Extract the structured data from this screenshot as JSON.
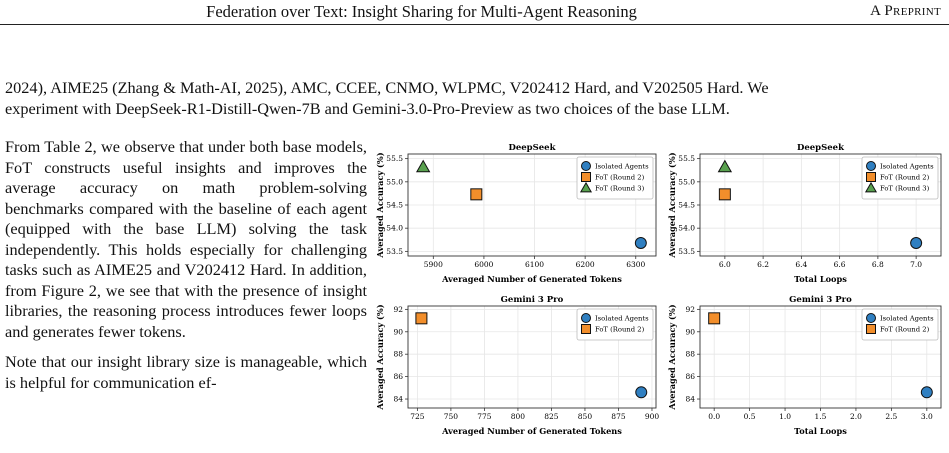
{
  "header": {
    "title": "Federation over Text: Insight Sharing for Multi-Agent Reasoning",
    "preprint": "A Preprint"
  },
  "intro": {
    "line1": "2024), AIME25 (Zhang & Math-AI, 2025), AMC, CCEE, CNMO, WLPMC, V202412 Hard, and V202505 Hard. We",
    "line2": "experiment with DeepSeek-R1-Distill-Qwen-7B and Gemini-3.0-Pro-Preview as two choices of the base LLM."
  },
  "body": {
    "paragraph1": "From Table 2, we observe that under both base models, FoT constructs useful insights and improves the average accuracy on math problem-solving benchmarks compared with the baseline of each agent (equipped with the base LLM) solving the task independently. This holds especially for challenging tasks such as AIME25 and V202412 Hard. In addition, from Figure 2, we see that with the presence of insight libraries, the reasoning process introduces fewer loops and generates fewer tokens.",
    "paragraph2": "Note that our insight library size is manageable, which is helpful for communication ef-"
  },
  "colors": {
    "isolated": "#2f7fc1",
    "round2": "#f28e2b",
    "round3": "#59a14f"
  },
  "chart_data": [
    {
      "type": "scatter",
      "title": "DeepSeek",
      "xlabel": "Averaged Number of Generated Tokens",
      "ylabel": "Averaged Accuracy (%)",
      "xlim": [
        5850,
        6340
      ],
      "ylim": [
        53.4,
        55.6
      ],
      "xticks": [
        5900,
        6000,
        6100,
        6200,
        6300
      ],
      "yticks": [
        53.5,
        54.0,
        54.5,
        55.0,
        55.5
      ],
      "ytick_labels": [
        "53.5",
        "54.0",
        "54.5",
        "55.0",
        "55.5"
      ],
      "xtick_labels": [
        "5900",
        "6000",
        "6100",
        "6200",
        "6300"
      ],
      "grid": true,
      "legend": "top-right",
      "series": [
        {
          "name": "Isolated Agents",
          "marker": "circle",
          "x": [
            6310
          ],
          "y": [
            53.68
          ]
        },
        {
          "name": "FoT (Round 2)",
          "marker": "square",
          "x": [
            5985
          ],
          "y": [
            54.73
          ]
        },
        {
          "name": "FoT (Round 3)",
          "marker": "triangle",
          "x": [
            5880
          ],
          "y": [
            55.32
          ]
        }
      ]
    },
    {
      "type": "scatter",
      "title": "DeepSeek",
      "xlabel": "Total Loops",
      "ylabel": "Averaged Accuracy (%)",
      "xlim": [
        5.87,
        7.13
      ],
      "ylim": [
        53.4,
        55.6
      ],
      "xticks": [
        6.0,
        6.2,
        6.4,
        6.6,
        6.8,
        7.0
      ],
      "xtick_labels": [
        "6.0",
        "6.2",
        "6.4",
        "6.6",
        "6.8",
        "7.0"
      ],
      "yticks": [
        53.5,
        54.0,
        54.5,
        55.0,
        55.5
      ],
      "ytick_labels": [
        "53.5",
        "54.0",
        "54.5",
        "55.0",
        "55.5"
      ],
      "grid": true,
      "legend": "top-right",
      "series": [
        {
          "name": "Isolated Agents",
          "marker": "circle",
          "x": [
            7.0
          ],
          "y": [
            53.68
          ]
        },
        {
          "name": "FoT (Round 2)",
          "marker": "square",
          "x": [
            6.0
          ],
          "y": [
            54.73
          ]
        },
        {
          "name": "FoT (Round 3)",
          "marker": "triangle",
          "x": [
            6.0
          ],
          "y": [
            55.32
          ]
        }
      ]
    },
    {
      "type": "scatter",
      "title": "Gemini 3 Pro",
      "xlabel": "Averaged Number of Generated Tokens",
      "ylabel": "Averaged Accuracy (%)",
      "xlim": [
        718,
        903
      ],
      "ylim": [
        83.2,
        92.3
      ],
      "xticks": [
        725,
        750,
        775,
        800,
        825,
        850,
        875,
        900
      ],
      "xtick_labels": [
        "725",
        "750",
        "775",
        "800",
        "825",
        "850",
        "875",
        "900"
      ],
      "yticks": [
        84,
        86,
        88,
        90,
        92
      ],
      "ytick_labels": [
        "84",
        "86",
        "88",
        "90",
        "92"
      ],
      "grid": true,
      "legend": "top-right",
      "series": [
        {
          "name": "Isolated Agents",
          "marker": "circle",
          "x": [
            892
          ],
          "y": [
            84.6
          ]
        },
        {
          "name": "FoT (Round 2)",
          "marker": "square",
          "x": [
            728
          ],
          "y": [
            91.2
          ]
        }
      ]
    },
    {
      "type": "scatter",
      "title": "Gemini 3 Pro",
      "xlabel": "Total Loops",
      "ylabel": "Averaged Accuracy (%)",
      "xlim": [
        -0.2,
        3.2
      ],
      "ylim": [
        83.2,
        92.3
      ],
      "xticks": [
        0.0,
        0.5,
        1.0,
        1.5,
        2.0,
        2.5,
        3.0
      ],
      "xtick_labels": [
        "0.0",
        "0.5",
        "1.0",
        "1.5",
        "2.0",
        "2.5",
        "3.0"
      ],
      "yticks": [
        84,
        86,
        88,
        90,
        92
      ],
      "ytick_labels": [
        "84",
        "86",
        "88",
        "90",
        "92"
      ],
      "grid": true,
      "legend": "top-right",
      "series": [
        {
          "name": "Isolated Agents",
          "marker": "circle",
          "x": [
            3.0
          ],
          "y": [
            84.6
          ]
        },
        {
          "name": "FoT (Round 2)",
          "marker": "square",
          "x": [
            0.0
          ],
          "y": [
            91.2
          ]
        }
      ]
    }
  ]
}
